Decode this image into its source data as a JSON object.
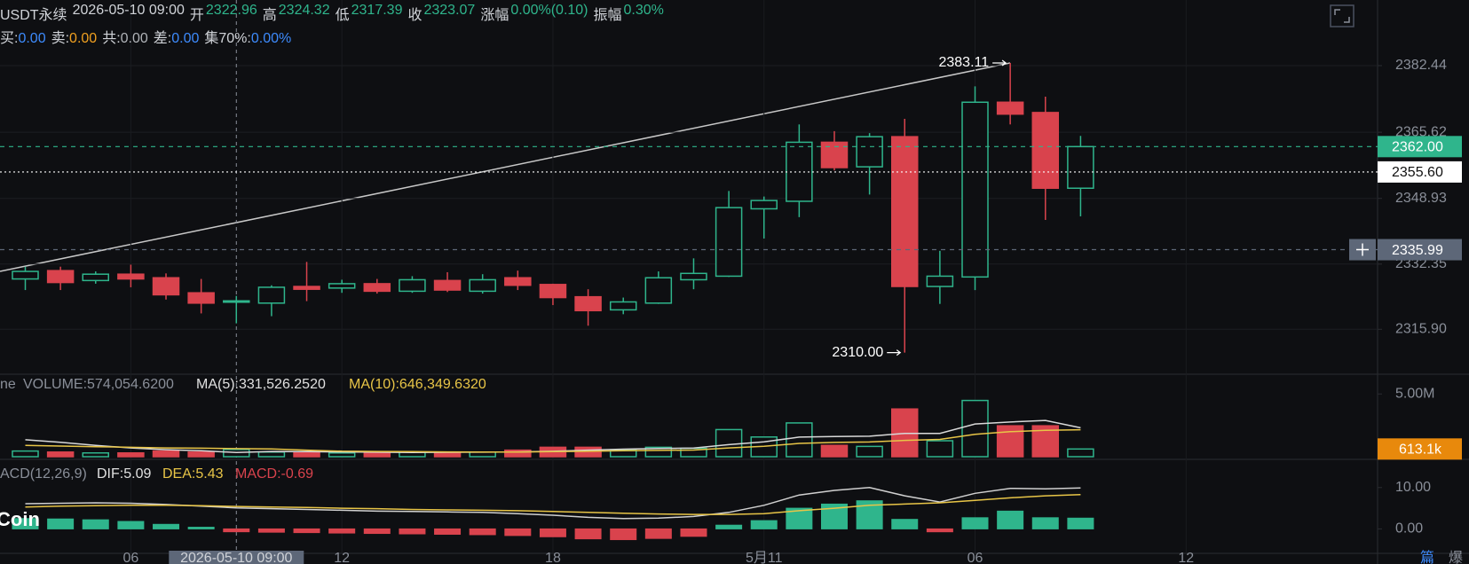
{
  "header": {
    "symbol": "USDT永续",
    "time": "2026-05-10 09:00",
    "fields": [
      {
        "label": "开",
        "value": "2322.96"
      },
      {
        "label": "高",
        "value": "2324.32"
      },
      {
        "label": "低",
        "value": "2317.39"
      },
      {
        "label": "收",
        "value": "2323.07"
      },
      {
        "label": "涨幅",
        "value": "0.00%(0.10)"
      },
      {
        "label": "振幅",
        "value": "0.30%"
      }
    ],
    "stats": [
      {
        "label": "买:",
        "value": "0.00",
        "color": "#3d8bfd"
      },
      {
        "label": "卖:",
        "value": "0.00",
        "color": "#f0a020"
      },
      {
        "label": "共:",
        "value": "0.00",
        "color": "#b0b3b8"
      },
      {
        "label": "差:",
        "value": "0.00",
        "color": "#3d8bfd"
      },
      {
        "label": "集70%:",
        "value": "0.00%",
        "color": "#3d8bfd"
      }
    ]
  },
  "watermark": "Coin",
  "footer_tabs": [
    {
      "text": "篇",
      "color": "#3d8bfd"
    },
    {
      "text": "爆",
      "color": "#8a8f99"
    }
  ],
  "chart_data": [
    {
      "type": "candlestick",
      "up_color": "#2fb58c",
      "down_color": "#d9434d",
      "categories": [
        null,
        null,
        null,
        "06",
        null,
        null,
        "2026-05-10 09:00",
        null,
        null,
        "12",
        null,
        null,
        null,
        null,
        null,
        "18",
        null,
        null,
        null,
        null,
        null,
        "5月11",
        null,
        null,
        null,
        null,
        null,
        "06",
        null,
        null,
        null,
        null,
        null,
        "12"
      ],
      "open": [
        2328.6,
        2330.7,
        2328.2,
        2329.8,
        2328.9,
        2325.1,
        2322.96,
        2322.5,
        2326.7,
        2326.3,
        2327.4,
        2325.5,
        2328.2,
        2325.5,
        2328.9,
        2327.2,
        2324.1,
        2320.8,
        2322.5,
        2328.4,
        2329.3,
        2346.3,
        2348.2,
        2363.1,
        2356.9,
        2364.5,
        2326.7,
        2329.1,
        2373.2,
        2370.6,
        2351.5,
        null,
        null,
        null
      ],
      "high": [
        2331.7,
        2331.7,
        2330.5,
        2332.2,
        2330.0,
        2328.6,
        2324.32,
        2327.0,
        2332.9,
        2328.4,
        2328.6,
        2329.3,
        2330.3,
        2329.8,
        2330.7,
        2327.4,
        2326.0,
        2323.9,
        2330.5,
        2333.8,
        2350.8,
        2349.4,
        2367.6,
        2365.9,
        2365.4,
        2369.0,
        2335.7,
        2377.2,
        2383.11,
        2374.6,
        2364.7,
        null,
        null,
        null
      ],
      "low": [
        2325.8,
        2325.8,
        2327.4,
        2326.5,
        2323.4,
        2319.9,
        2317.39,
        2319.2,
        2323.0,
        2325.1,
        2324.9,
        2325.1,
        2325.3,
        2324.9,
        2325.8,
        2322.0,
        2316.8,
        2319.7,
        2322.3,
        2326.0,
        2329.1,
        2338.8,
        2344.2,
        2356.0,
        2349.9,
        2310.0,
        2322.3,
        2325.8,
        2367.6,
        2343.5,
        2344.4,
        null,
        null,
        null
      ],
      "close": [
        2330.5,
        2327.7,
        2329.8,
        2328.6,
        2324.6,
        2322.5,
        2323.07,
        2326.5,
        2326.0,
        2327.4,
        2325.5,
        2328.4,
        2325.8,
        2328.4,
        2327.0,
        2323.9,
        2320.6,
        2322.8,
        2328.9,
        2330.0,
        2346.6,
        2348.4,
        2363.1,
        2356.7,
        2364.5,
        2326.7,
        2329.3,
        2373.2,
        2370.2,
        2351.5,
        2362.0,
        null,
        null,
        null
      ],
      "ylim": [
        2305,
        2399
      ],
      "yticks": [
        {
          "value": 2315.9,
          "label": "2315.90"
        },
        2332.35,
        2348.93,
        2365.62,
        2382.44
      ],
      "grid": true,
      "annotations": [
        {
          "value": 2383.11,
          "label": "2383.11"
        },
        {
          "value": 2310,
          "label": "2310.00"
        }
      ],
      "price_lines": [
        {
          "value": 2362,
          "label": "2362.00",
          "color": "#2fb58c",
          "text_color": "#ffffff",
          "style": "last"
        },
        {
          "value": 2355.6,
          "label": "2355.60",
          "color": "#ffffff",
          "text_color": "#111111",
          "style": "mark"
        },
        {
          "value": 2335.99,
          "label": "2335.99",
          "color": "#5d6778",
          "text_color": "#ffffff",
          "style": "crosshair"
        }
      ]
    },
    {
      "type": "volume",
      "indicators": [
        {
          "text": "ne",
          "color": "#8a8f99"
        },
        {
          "text": "VOLUME:574,054.6200",
          "color": "#8a8f99"
        },
        {
          "text": "MA(5):331,526.2520",
          "color": "#e0e0e0"
        },
        {
          "text": "MA(10):646,349.6320",
          "color": "#e8c547"
        }
      ],
      "values": [
        450000,
        370000,
        300000,
        300000,
        450000,
        370000,
        574054.62,
        370000,
        300000,
        300000,
        300000,
        370000,
        370000,
        370000,
        520000,
        750000,
        750000,
        520000,
        750000,
        670000,
        2160000,
        1570000,
        2690000,
        900000,
        820000,
        3800000,
        1270000,
        4480000,
        2460000,
        2460000,
        613100,
        null,
        null,
        null
      ],
      "series": [
        {
          "color": "#d9d9d9",
          "values": [
            1350000,
            1150000,
            900000,
            700000,
            560000,
            470000,
            331526.252,
            420000,
            400000,
            380000,
            360000,
            340000,
            350000,
            360000,
            380000,
            430000,
            520000,
            600000,
            650000,
            690000,
            960000,
            1180000,
            1560000,
            1610000,
            1630000,
            1860000,
            1860000,
            2610000,
            2760000,
            2890000,
            2300000,
            null,
            null,
            null
          ]
        },
        {
          "color": "#e8c547",
          "values": [
            900000,
            850000,
            800000,
            750000,
            700000,
            680000,
            646349.632,
            620000,
            520000,
            440000,
            420000,
            400000,
            380000,
            370000,
            370000,
            400000,
            430000,
            470000,
            500000,
            530000,
            700000,
            830000,
            1060000,
            1140000,
            1170000,
            1300000,
            1380000,
            1790000,
            1990000,
            2100000,
            2150000,
            null,
            null,
            null
          ]
        }
      ],
      "ylim": [
        0,
        6500000
      ],
      "yticks": [
        {
          "value": 5000000,
          "label": "5.00M"
        }
      ],
      "last_marker": {
        "value": 613100,
        "label": "613.1k",
        "color": "#e8890c"
      }
    },
    {
      "type": "macd",
      "indicators": [
        {
          "text": "ACD(12,26,9)",
          "color": "#8a8f99"
        },
        {
          "text": "DIF:5.09",
          "color": "#e0e0e0"
        },
        {
          "text": "DEA:5.43",
          "color": "#e8c547"
        },
        {
          "text": "MACD:-0.69",
          "color": "#d9434d"
        }
      ],
      "values": [
        2.5,
        2.4,
        2.2,
        1.8,
        1.1,
        0.4,
        -0.69,
        -0.8,
        -0.9,
        -1.0,
        -1.1,
        -1.2,
        -1.3,
        -1.4,
        -1.6,
        -1.9,
        -2.4,
        -2.6,
        -2.3,
        -1.8,
        0.9,
        2.0,
        5.0,
        6.0,
        6.8,
        2.3,
        -0.7,
        2.7,
        4.3,
        2.7,
        2.6,
        null,
        null,
        null
      ],
      "series": [
        {
          "color": "#d0d0d0",
          "values": [
            6.1,
            6.2,
            6.3,
            6.2,
            5.9,
            5.5,
            5.09,
            4.9,
            4.7,
            4.5,
            4.3,
            4.2,
            4.1,
            4.0,
            3.7,
            3.3,
            2.8,
            2.5,
            2.6,
            3.0,
            4.0,
            5.7,
            8.2,
            9.3,
            10.0,
            8.0,
            6.5,
            8.6,
            9.8,
            9.7,
            9.9,
            null,
            null,
            null
          ]
        },
        {
          "color": "#e8c547",
          "values": [
            5.3,
            5.5,
            5.6,
            5.7,
            5.7,
            5.6,
            5.43,
            5.3,
            5.2,
            5.0,
            4.9,
            4.7,
            4.6,
            4.5,
            4.4,
            4.2,
            4.0,
            3.8,
            3.6,
            3.5,
            3.5,
            3.7,
            4.4,
            5.0,
            5.7,
            6.0,
            6.3,
            6.9,
            7.5,
            8.0,
            8.3,
            null,
            null,
            null
          ]
        }
      ],
      "ylim": [
        -5.7,
        16.6
      ],
      "yticks": [
        {
          "value": 0,
          "label": "0.00"
        },
        {
          "value": 10,
          "label": "10.00"
        }
      ]
    }
  ]
}
